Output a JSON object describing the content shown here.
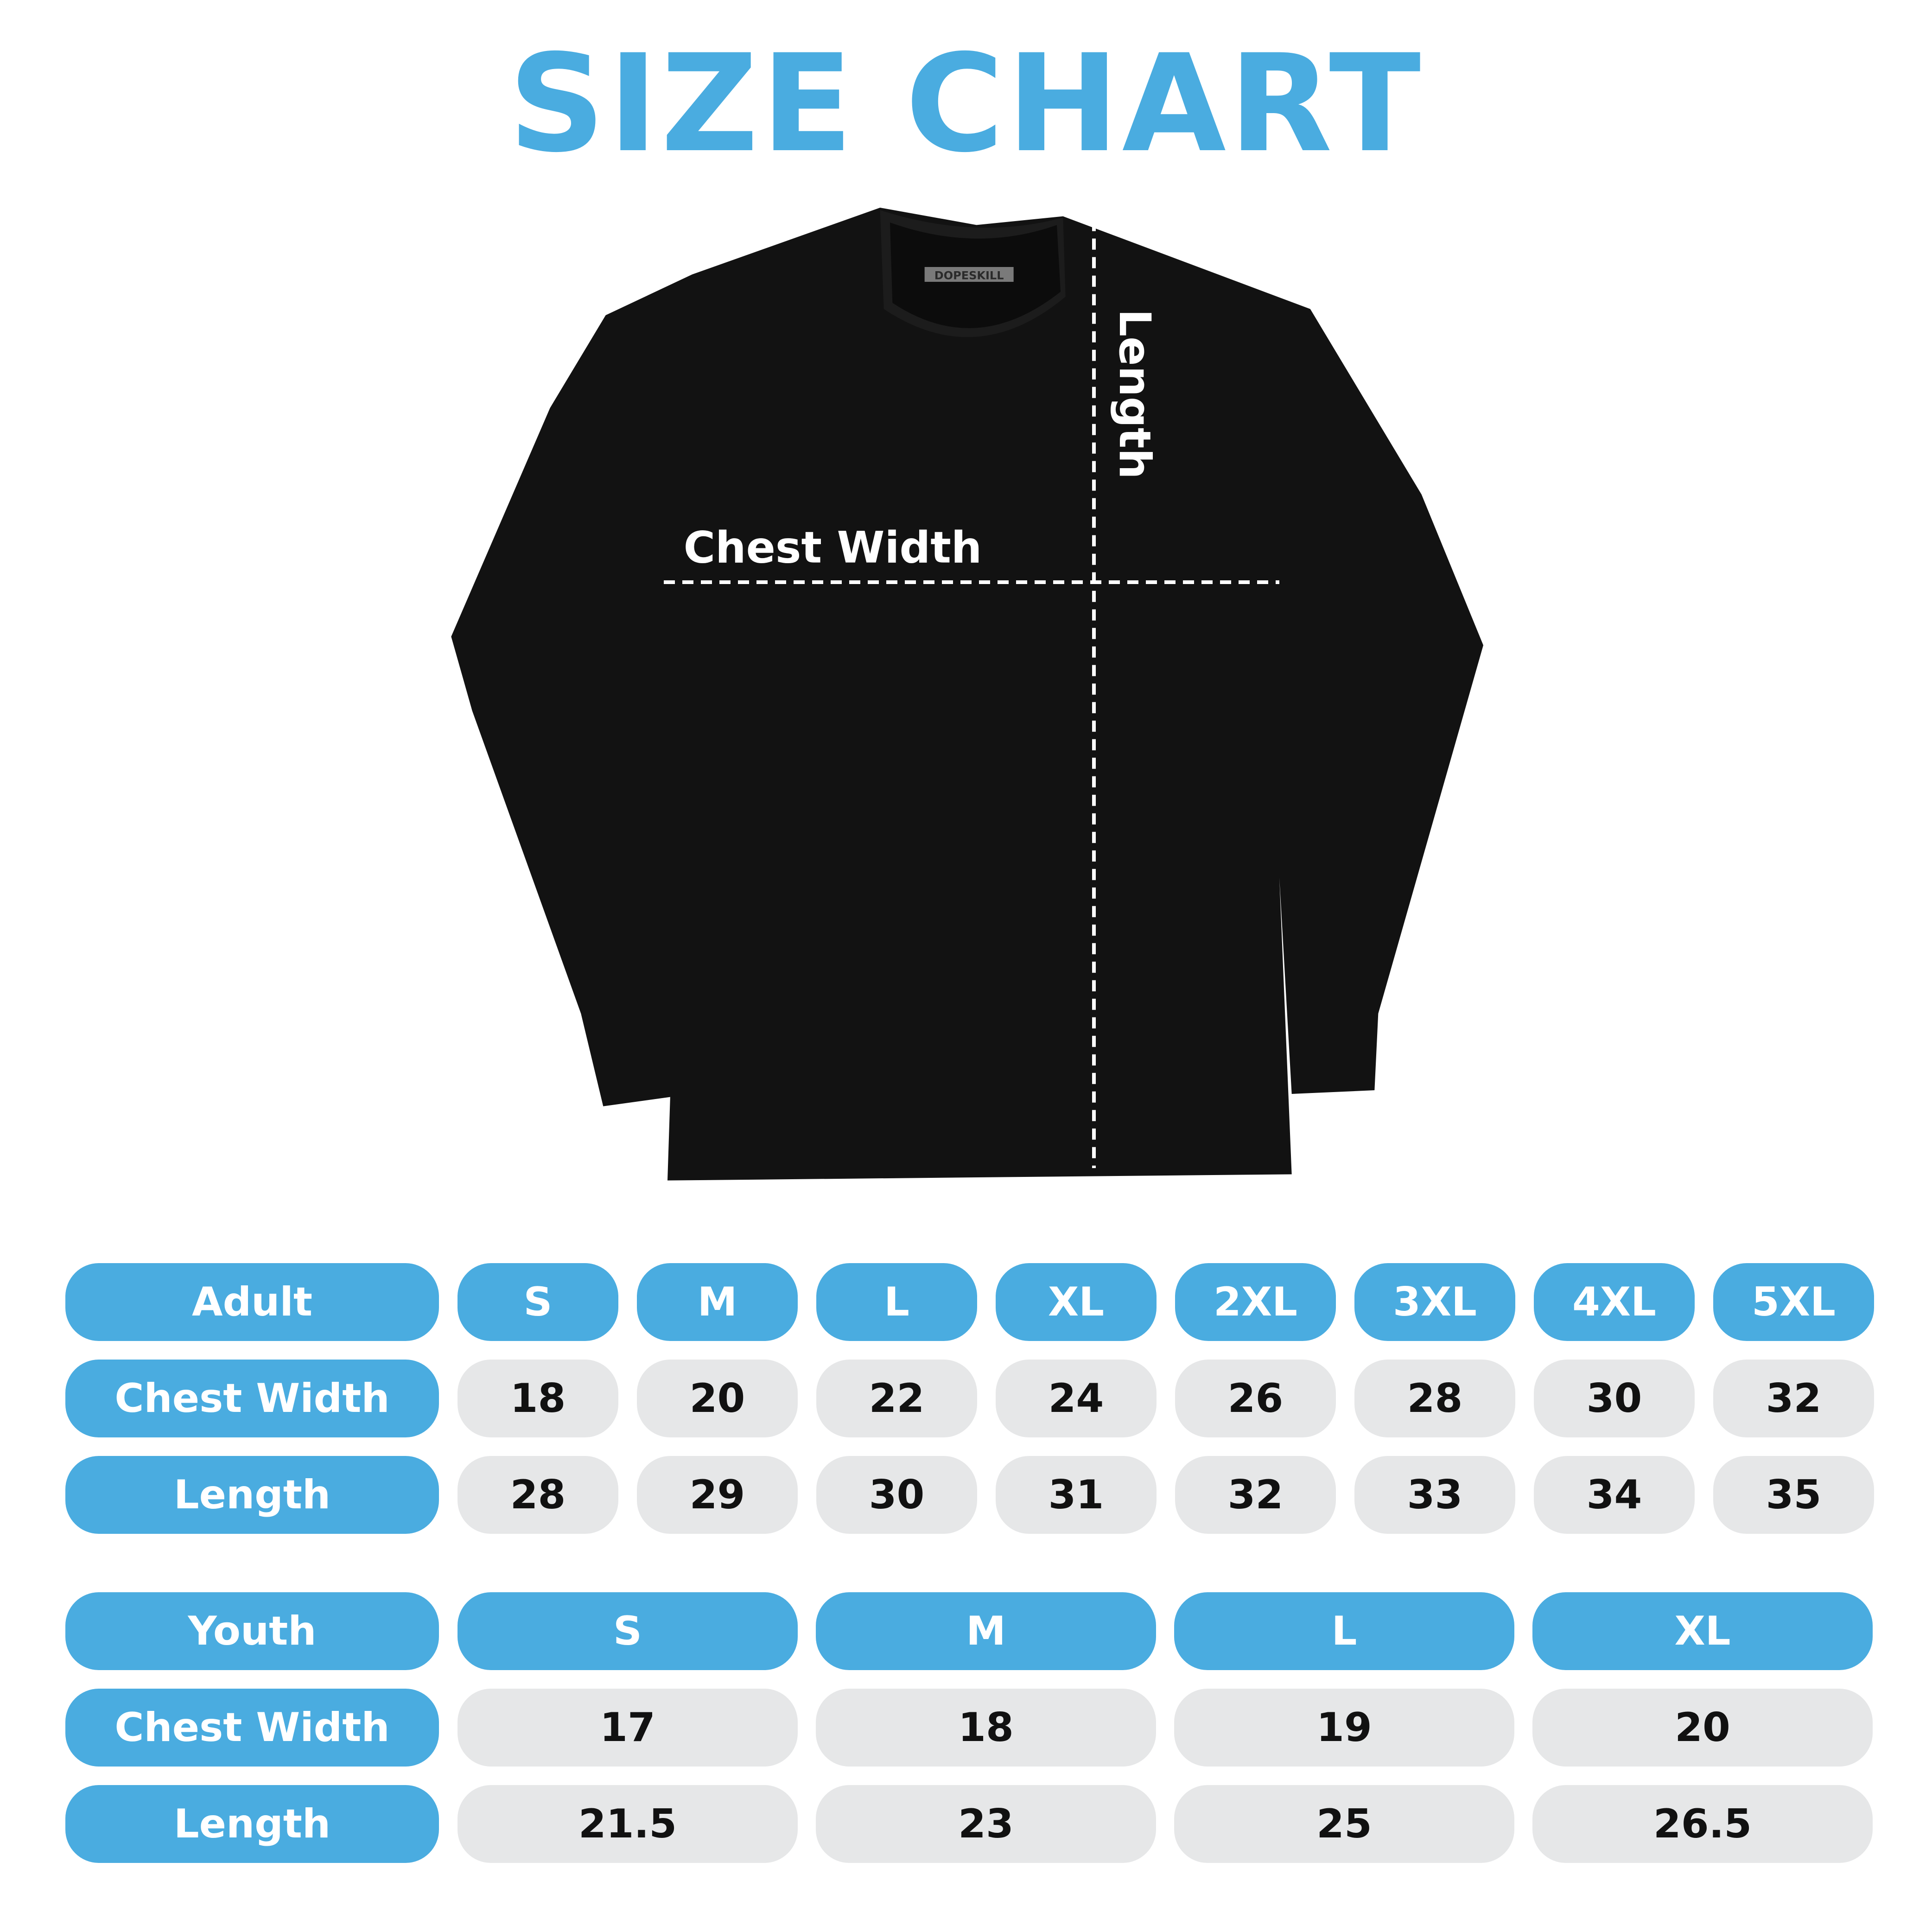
{
  "title": "SIZE CHART",
  "shirt": {
    "brand_label": "DOPESKILL",
    "chest_width_label": "Chest Width",
    "length_label": "Length",
    "shirt_color": "#111111"
  },
  "colors": {
    "accent": "#4aace0",
    "cell": "#e6e7e8"
  },
  "adult": {
    "header": "Adult",
    "sizes": [
      "S",
      "M",
      "L",
      "XL",
      "2XL",
      "3XL",
      "4XL",
      "5XL"
    ],
    "rows": [
      {
        "label": "Chest Width",
        "values": [
          "18",
          "20",
          "22",
          "24",
          "26",
          "28",
          "30",
          "32"
        ]
      },
      {
        "label": "Length",
        "values": [
          "28",
          "29",
          "30",
          "31",
          "32",
          "33",
          "34",
          "35"
        ]
      }
    ]
  },
  "youth": {
    "header": "Youth",
    "sizes": [
      "S",
      "M",
      "L",
      "XL"
    ],
    "rows": [
      {
        "label": "Chest Width",
        "values": [
          "17",
          "18",
          "19",
          "20"
        ]
      },
      {
        "label": "Length",
        "values": [
          "21.5",
          "23",
          "25",
          "26.5"
        ]
      }
    ]
  }
}
